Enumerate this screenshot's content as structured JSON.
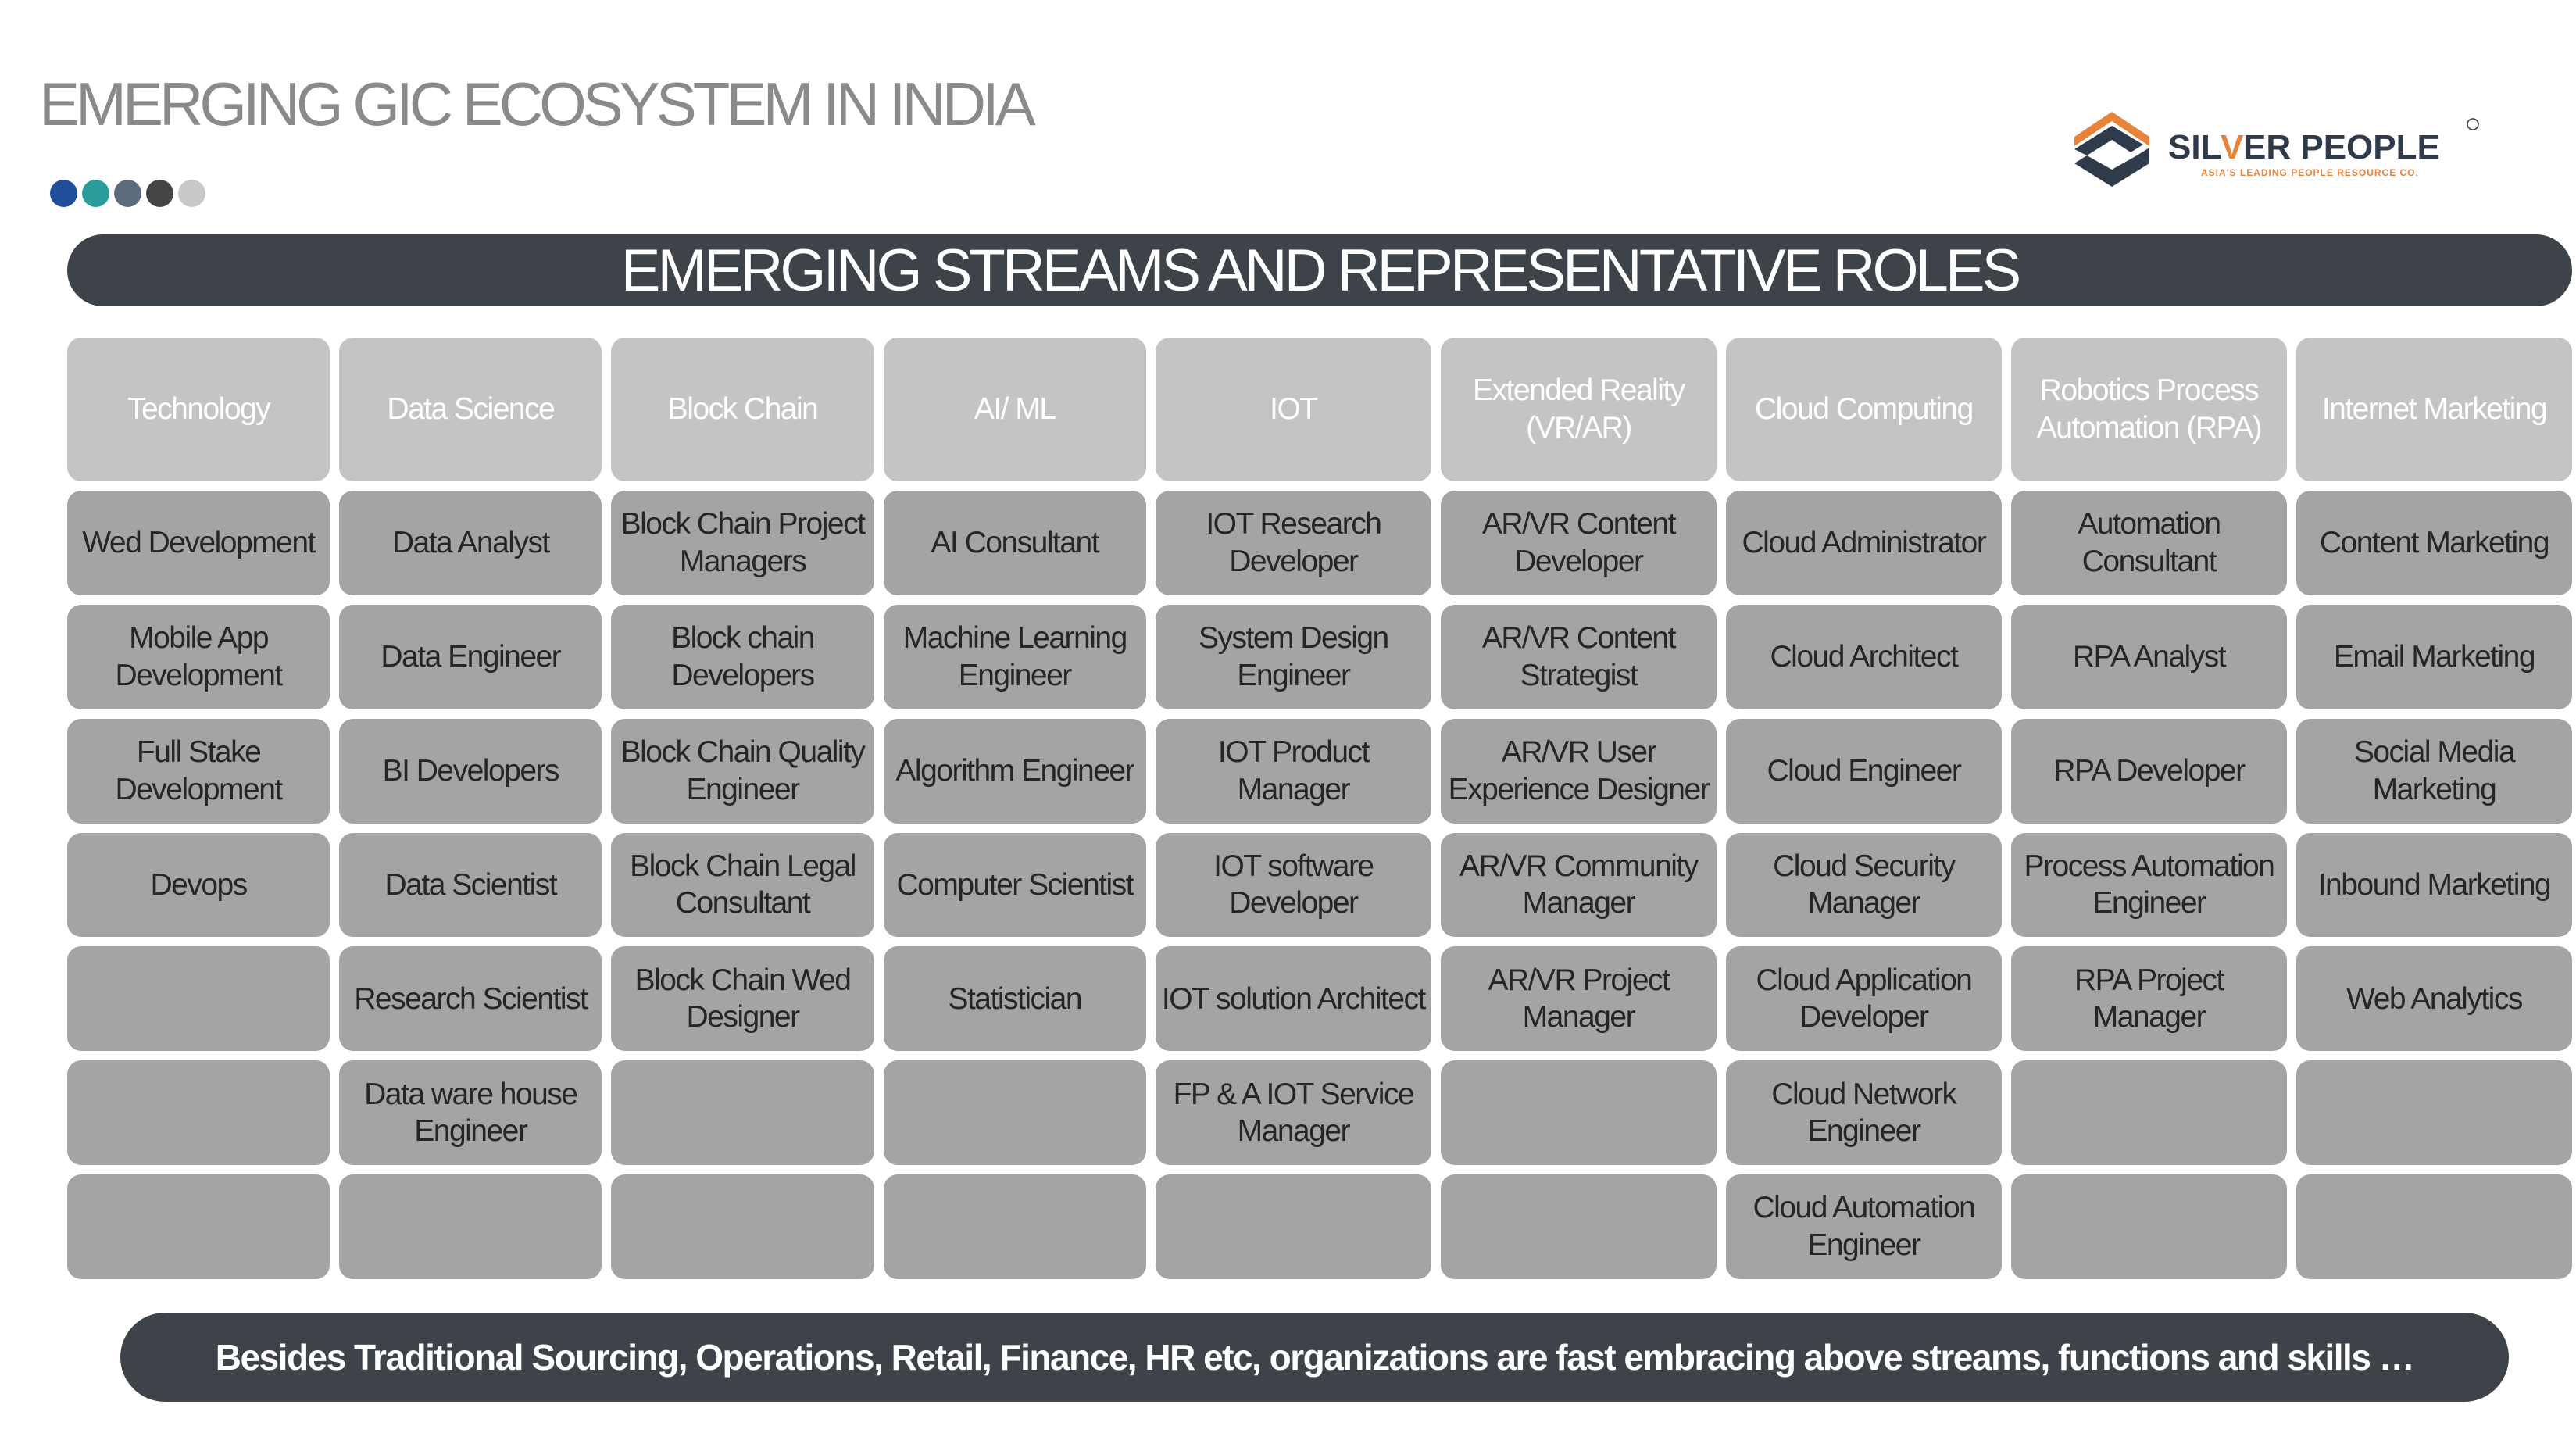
{
  "title": "EMERGING GIC ECOSYSTEM IN INDIA",
  "dots": [
    "#1f4e9c",
    "#2a9c9c",
    "#5b6b7b",
    "#444444",
    "#c8c8c8"
  ],
  "logo": {
    "name": "SILVER PEOPLE",
    "tagline": "ASIA'S LEADING PEOPLE RESOURCE CO."
  },
  "banner": "EMERGING STREAMS AND REPRESENTATIVE ROLES",
  "columns": [
    {
      "header": "Technology",
      "roles": [
        "Wed Development",
        "Mobile App Development",
        "Full Stake Development",
        "Devops",
        "",
        "",
        ""
      ]
    },
    {
      "header": "Data Science",
      "roles": [
        "Data Analyst",
        "Data Engineer",
        "BI Developers",
        "Data Scientist",
        "Research Scientist",
        "Data ware house Engineer",
        ""
      ]
    },
    {
      "header": "Block Chain",
      "roles": [
        "Block Chain Project Managers",
        "Block chain Developers",
        "Block Chain Quality Engineer",
        "Block Chain Legal Consultant",
        "Block Chain Wed Designer",
        "",
        ""
      ]
    },
    {
      "header": "AI/ ML",
      "roles": [
        "AI Consultant",
        "Machine Learning Engineer",
        "Algorithm Engineer",
        "Computer Scientist",
        "Statistician",
        "",
        ""
      ]
    },
    {
      "header": "IOT",
      "roles": [
        "IOT Research Developer",
        "System Design Engineer",
        "IOT Product Manager",
        "IOT software Developer",
        "IOT solution Architect",
        "FP & A IOT Service Manager",
        ""
      ]
    },
    {
      "header": "Extended Reality (VR/AR)",
      "roles": [
        "AR/VR Content Developer",
        "AR/VR Content Strategist",
        "AR/VR User Experience Designer",
        "AR/VR Community Manager",
        "AR/VR Project Manager",
        "",
        ""
      ]
    },
    {
      "header": "Cloud Computing",
      "roles": [
        "Cloud Administrator",
        "Cloud Architect",
        "Cloud Engineer",
        "Cloud Security Manager",
        "Cloud Application Developer",
        "Cloud Network Engineer",
        "Cloud Automation Engineer"
      ]
    },
    {
      "header": "Robotics Process Automation (RPA)",
      "roles": [
        "Automation Consultant",
        "RPA Analyst",
        "RPA Developer",
        "Process Automation Engineer",
        "RPA Project Manager",
        "",
        ""
      ]
    },
    {
      "header": "Internet Marketing",
      "roles": [
        "Content Marketing",
        "Email Marketing",
        "Social Media Marketing",
        "Inbound Marketing",
        "Web Analytics",
        "",
        ""
      ]
    }
  ],
  "footer": "Besides Traditional Sourcing, Operations, Retail, Finance, HR etc, organizations are fast embracing above streams, functions and skills …"
}
